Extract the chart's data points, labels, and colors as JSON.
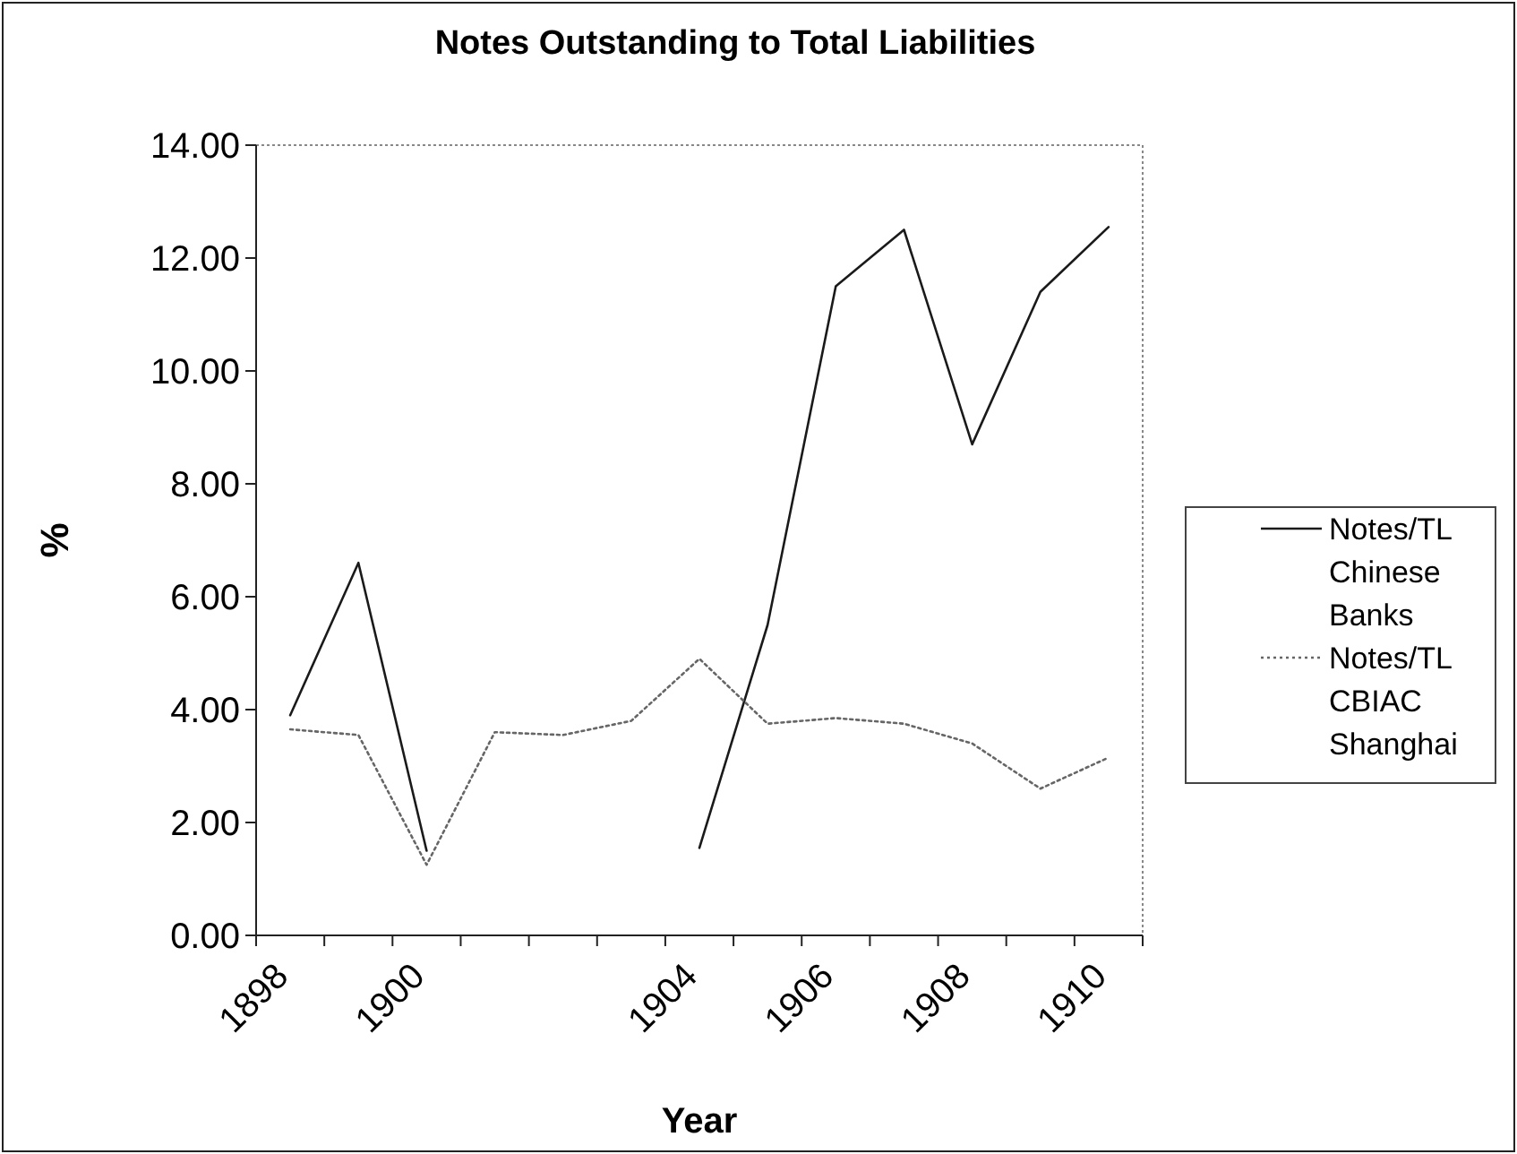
{
  "chart_data": {
    "type": "line",
    "title": "Notes Outstanding to Total Liabilities",
    "xlabel": "Year",
    "ylabel": "%",
    "categories": [
      "1898",
      null,
      "1900",
      null,
      null,
      null,
      "1904",
      null,
      "1906",
      null,
      "1908",
      null,
      "1910"
    ],
    "series": [
      {
        "name": "Notes/TL Chinese Banks",
        "color": "#1a1a1a",
        "line_style": "solid",
        "values": [
          3.9,
          6.6,
          1.5,
          null,
          null,
          null,
          1.55,
          5.5,
          11.5,
          12.5,
          8.7,
          11.4,
          12.55
        ]
      },
      {
        "name": "Notes/TL CBIAC Shanghai",
        "color": "#666666",
        "line_style": "dotted",
        "values": [
          3.65,
          3.55,
          1.25,
          3.6,
          3.55,
          3.8,
          4.9,
          3.75,
          3.85,
          3.75,
          3.4,
          2.6,
          3.15
        ]
      }
    ],
    "ylim": [
      0,
      14
    ],
    "yticks": [
      {
        "value": 0,
        "label": "0.00"
      },
      {
        "value": 2,
        "label": "2.00"
      },
      {
        "value": 4,
        "label": "4.00"
      },
      {
        "value": 6,
        "label": "6.00"
      },
      {
        "value": 8,
        "label": "8.00"
      },
      {
        "value": 10,
        "label": "10.00"
      },
      {
        "value": 12,
        "label": "12.00"
      },
      {
        "value": 14,
        "label": "14.00"
      }
    ],
    "grid": false,
    "legend": "right"
  }
}
